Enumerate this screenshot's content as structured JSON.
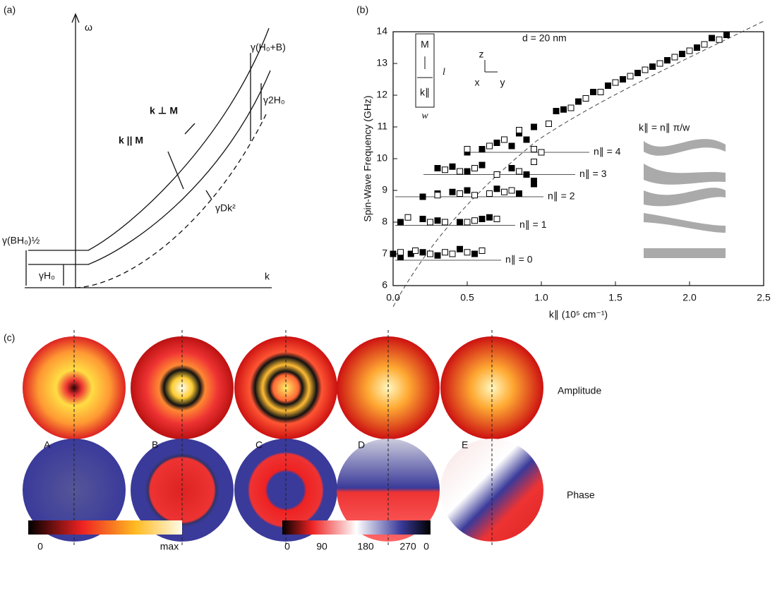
{
  "panel_a": {
    "label": "(a)",
    "texts": [
      "ω",
      "k",
      "γ(H₀+B)",
      "γ2H₀",
      "k ⊥ M",
      "k || M",
      "γDk²",
      "γ(BH₀)½",
      "γH₀"
    ]
  },
  "chart_data": {
    "type": "scatter",
    "panel_label": "(b)",
    "y_label": "Spin-Wave Frequency (GHz)",
    "x_label": "k∥ (10⁵ cm⁻¹)",
    "xlim": [
      0,
      2.5
    ],
    "ylim": [
      6,
      14
    ],
    "xticks": [
      {
        "value": 0,
        "label": "0.0"
      },
      0.5,
      {
        "value": 1,
        "label": "1.0"
      },
      1.5,
      {
        "value": 2,
        "label": "2.0"
      },
      2.5
    ],
    "yticks": [
      6,
      7,
      8,
      9,
      10,
      11,
      12,
      13,
      14
    ],
    "series": [
      {
        "marker": "filled",
        "color": "#000000",
        "x": [
          0.0,
          0.05,
          0.12,
          0.2,
          0.3,
          0.45,
          0.55,
          0.05,
          0.2,
          0.3,
          0.45,
          0.6,
          0.65,
          0.2,
          0.3,
          0.4,
          0.5,
          0.7,
          0.85,
          0.95,
          0.3,
          0.4,
          0.5,
          0.6,
          0.8,
          0.9,
          0.95,
          0.5,
          0.6,
          0.8,
          0.9,
          0.7,
          0.85,
          0.95,
          1.1,
          1.15,
          1.25,
          1.35,
          1.45,
          1.55,
          1.65,
          1.75,
          1.85,
          1.95,
          2.05,
          2.15,
          2.25
        ],
        "values": [
          7.0,
          6.9,
          7.0,
          7.05,
          6.95,
          7.15,
          7.0,
          8.0,
          8.1,
          8.05,
          8.0,
          8.1,
          8.15,
          8.8,
          8.9,
          8.95,
          9.0,
          9.05,
          8.9,
          9.2,
          9.7,
          9.75,
          9.6,
          9.8,
          9.7,
          9.5,
          9.3,
          10.2,
          10.3,
          10.4,
          10.6,
          10.5,
          10.8,
          11.0,
          11.5,
          11.55,
          11.8,
          12.1,
          12.3,
          12.5,
          12.7,
          12.9,
          13.1,
          13.3,
          13.5,
          13.8,
          13.9
        ]
      },
      {
        "marker": "open",
        "color": "#000000",
        "x": [
          0.05,
          0.15,
          0.25,
          0.35,
          0.4,
          0.5,
          0.6,
          0.1,
          0.25,
          0.35,
          0.5,
          0.55,
          0.7,
          0.3,
          0.45,
          0.55,
          0.65,
          0.75,
          0.8,
          0.35,
          0.45,
          0.55,
          0.7,
          0.85,
          0.95,
          0.5,
          0.65,
          0.75,
          0.85,
          0.95,
          1.0,
          1.05,
          1.2,
          1.3,
          1.4,
          1.5,
          1.6,
          1.7,
          1.8,
          1.9,
          2.0,
          2.1,
          2.2
        ],
        "values": [
          7.05,
          7.1,
          7.0,
          7.05,
          7.0,
          7.05,
          7.1,
          8.15,
          8.0,
          8.0,
          8.0,
          8.05,
          8.1,
          8.85,
          8.9,
          8.85,
          8.9,
          8.95,
          9.0,
          9.65,
          9.6,
          9.7,
          9.5,
          9.6,
          9.9,
          10.3,
          10.4,
          10.6,
          10.9,
          10.3,
          10.2,
          11.1,
          11.6,
          11.9,
          12.1,
          12.4,
          12.6,
          12.8,
          13.0,
          13.2,
          13.4,
          13.6,
          13.75
        ]
      }
    ],
    "levels": [
      {
        "label": "n∥ = 0",
        "value": 6.8
      },
      {
        "label": "n∥ = 1",
        "value": 7.9
      },
      {
        "label": "n∥ = 2",
        "value": 8.8
      },
      {
        "label": "n∥ = 3",
        "value": 9.5
      },
      {
        "label": "n∥ = 4",
        "value": 10.2
      }
    ],
    "annotations": [
      "d = 20 nm",
      "k∥ = n∥ π/w",
      "M",
      "k∥",
      "l",
      "w",
      "z",
      "x",
      "y"
    ]
  },
  "panel_c": {
    "label": "(c)",
    "rows": [
      "Amplitude",
      "Phase"
    ],
    "modes": [
      "A",
      "B",
      "C",
      "D",
      "E"
    ],
    "amplitude_scale": [
      "0",
      "max"
    ],
    "phase_scale": [
      "0",
      "90",
      "180",
      "270",
      "0"
    ]
  }
}
